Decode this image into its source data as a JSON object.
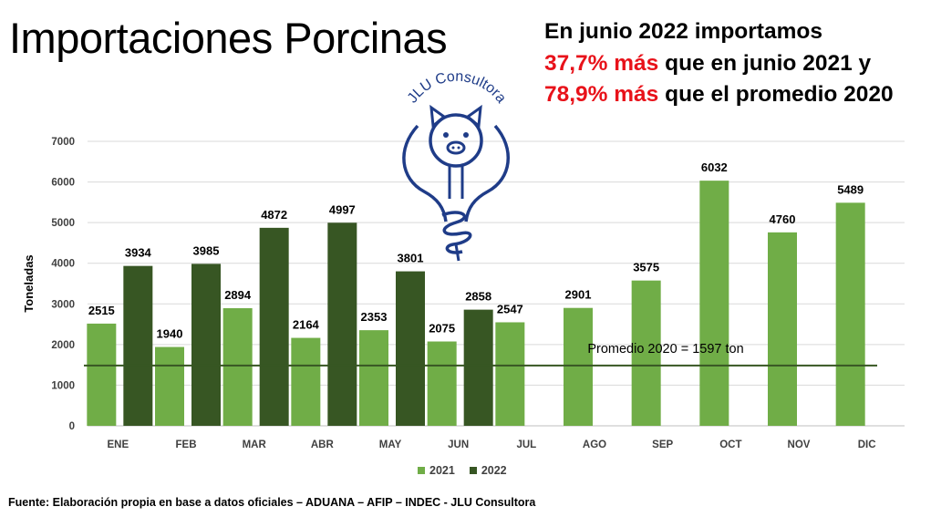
{
  "title": "Importaciones Porcinas",
  "headline": {
    "line1": "En junio 2022 importamos",
    "red1": "37,7% más",
    "line2": " que en junio 2021 y",
    "red2": "78,9% más",
    "line3": " que el promedio 2020"
  },
  "logo": {
    "text": "JLU Consultora",
    "icon": "lightbulb-pig-icon"
  },
  "source": "Fuente: Elaboración propia en base a datos oficiales – ADUANA – AFIP – INDEC - JLU Consultora",
  "colors": {
    "series2021": "#70ad47",
    "series2022": "#375623",
    "avg_line": "#375623",
    "logo": "#1f3c88",
    "highlight": "#e8121a"
  },
  "chart_data": {
    "type": "bar",
    "categories": [
      "ENE",
      "FEB",
      "MAR",
      "ABR",
      "MAY",
      "JUN",
      "JUL",
      "AGO",
      "SEP",
      "OCT",
      "NOV",
      "DIC"
    ],
    "series": [
      {
        "name": "2021",
        "values": [
          2515,
          1940,
          2894,
          2164,
          2353,
          2075,
          2547,
          2901,
          3575,
          6032,
          4760,
          5489
        ]
      },
      {
        "name": "2022",
        "values": [
          3934,
          3985,
          4872,
          4997,
          3801,
          2858,
          null,
          null,
          null,
          null,
          null,
          null
        ]
      }
    ],
    "ylabel": "Toneladas",
    "ylim": [
      0,
      7000
    ],
    "yticks": [
      0,
      1000,
      2000,
      3000,
      4000,
      5000,
      6000,
      7000
    ],
    "grid": true,
    "legend": "bottom",
    "reference_line": {
      "label": "Promedio 2020 = 1597 ton",
      "value": 1597
    }
  }
}
